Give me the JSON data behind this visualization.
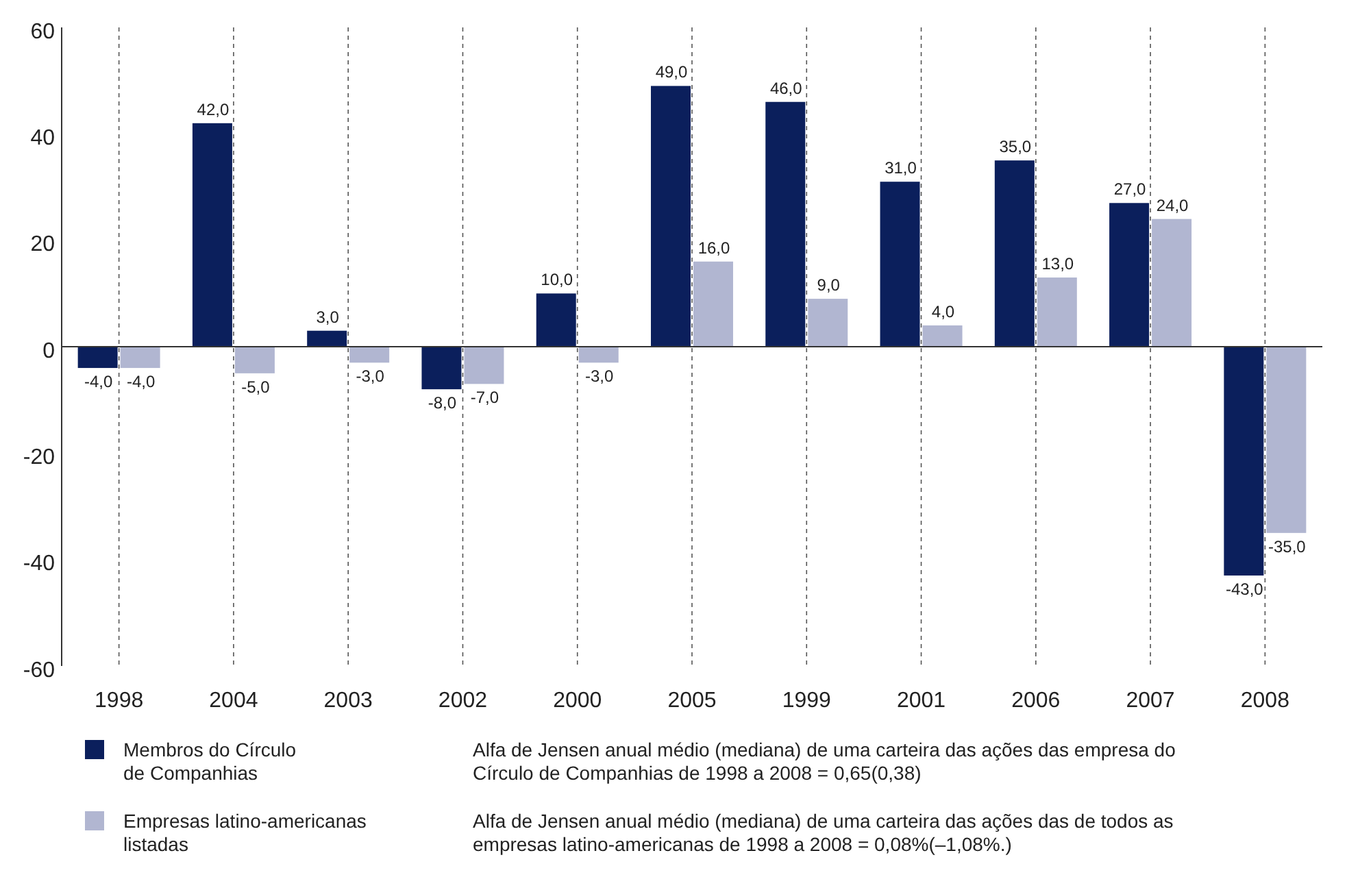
{
  "chart_data": {
    "type": "bar",
    "categories": [
      "1998",
      "2004",
      "2003",
      "2002",
      "2000",
      "2005",
      "1999",
      "2001",
      "2006",
      "2007",
      "2008"
    ],
    "series": [
      {
        "name": "Membros do Círculo\nde Companhias",
        "color": "#0b1f5c",
        "values": [
          -4,
          42,
          3,
          -8,
          10,
          49,
          46,
          31,
          35,
          27,
          -43
        ],
        "value_labels": [
          "-4,0",
          "42,0",
          "3,0",
          "-8,0",
          "10,0",
          "49,0",
          "46,0",
          "31,0",
          "35,0",
          "27,0",
          "-43,0"
        ]
      },
      {
        "name": "Empresas latino-americanas\nlistadas",
        "color": "#b1b6d1",
        "values": [
          -4,
          -5,
          -3,
          -7,
          -3,
          16,
          9,
          4,
          13,
          24,
          -35
        ],
        "value_labels": [
          "-4,0",
          "-5,0",
          "-3,0",
          "-7,0",
          "-3,0",
          "16,0",
          "9,0",
          "4,0",
          "13,0",
          "24,0",
          "-35,0"
        ]
      }
    ],
    "ref_lines": [
      {
        "axis": "y",
        "value": 0,
        "color": "#333333"
      }
    ],
    "ylim": [
      -60,
      60
    ],
    "yticks": [
      -60,
      -40,
      -20,
      0,
      20,
      40,
      60
    ],
    "grid": "x",
    "legend": "bottom left",
    "annotations": [
      "Alfa de Jensen anual médio (mediana) de uma carteira das ações das empresa do\nCírculo de Companhias de 1998 a 2008 = 0,65(0,38)",
      "Alfa de Jensen anual médio (mediana) de uma carteira das ações das de todos as\nempresas latino-americanas de 1998 a 2008 = 0,08%(–1,08%.)"
    ]
  }
}
